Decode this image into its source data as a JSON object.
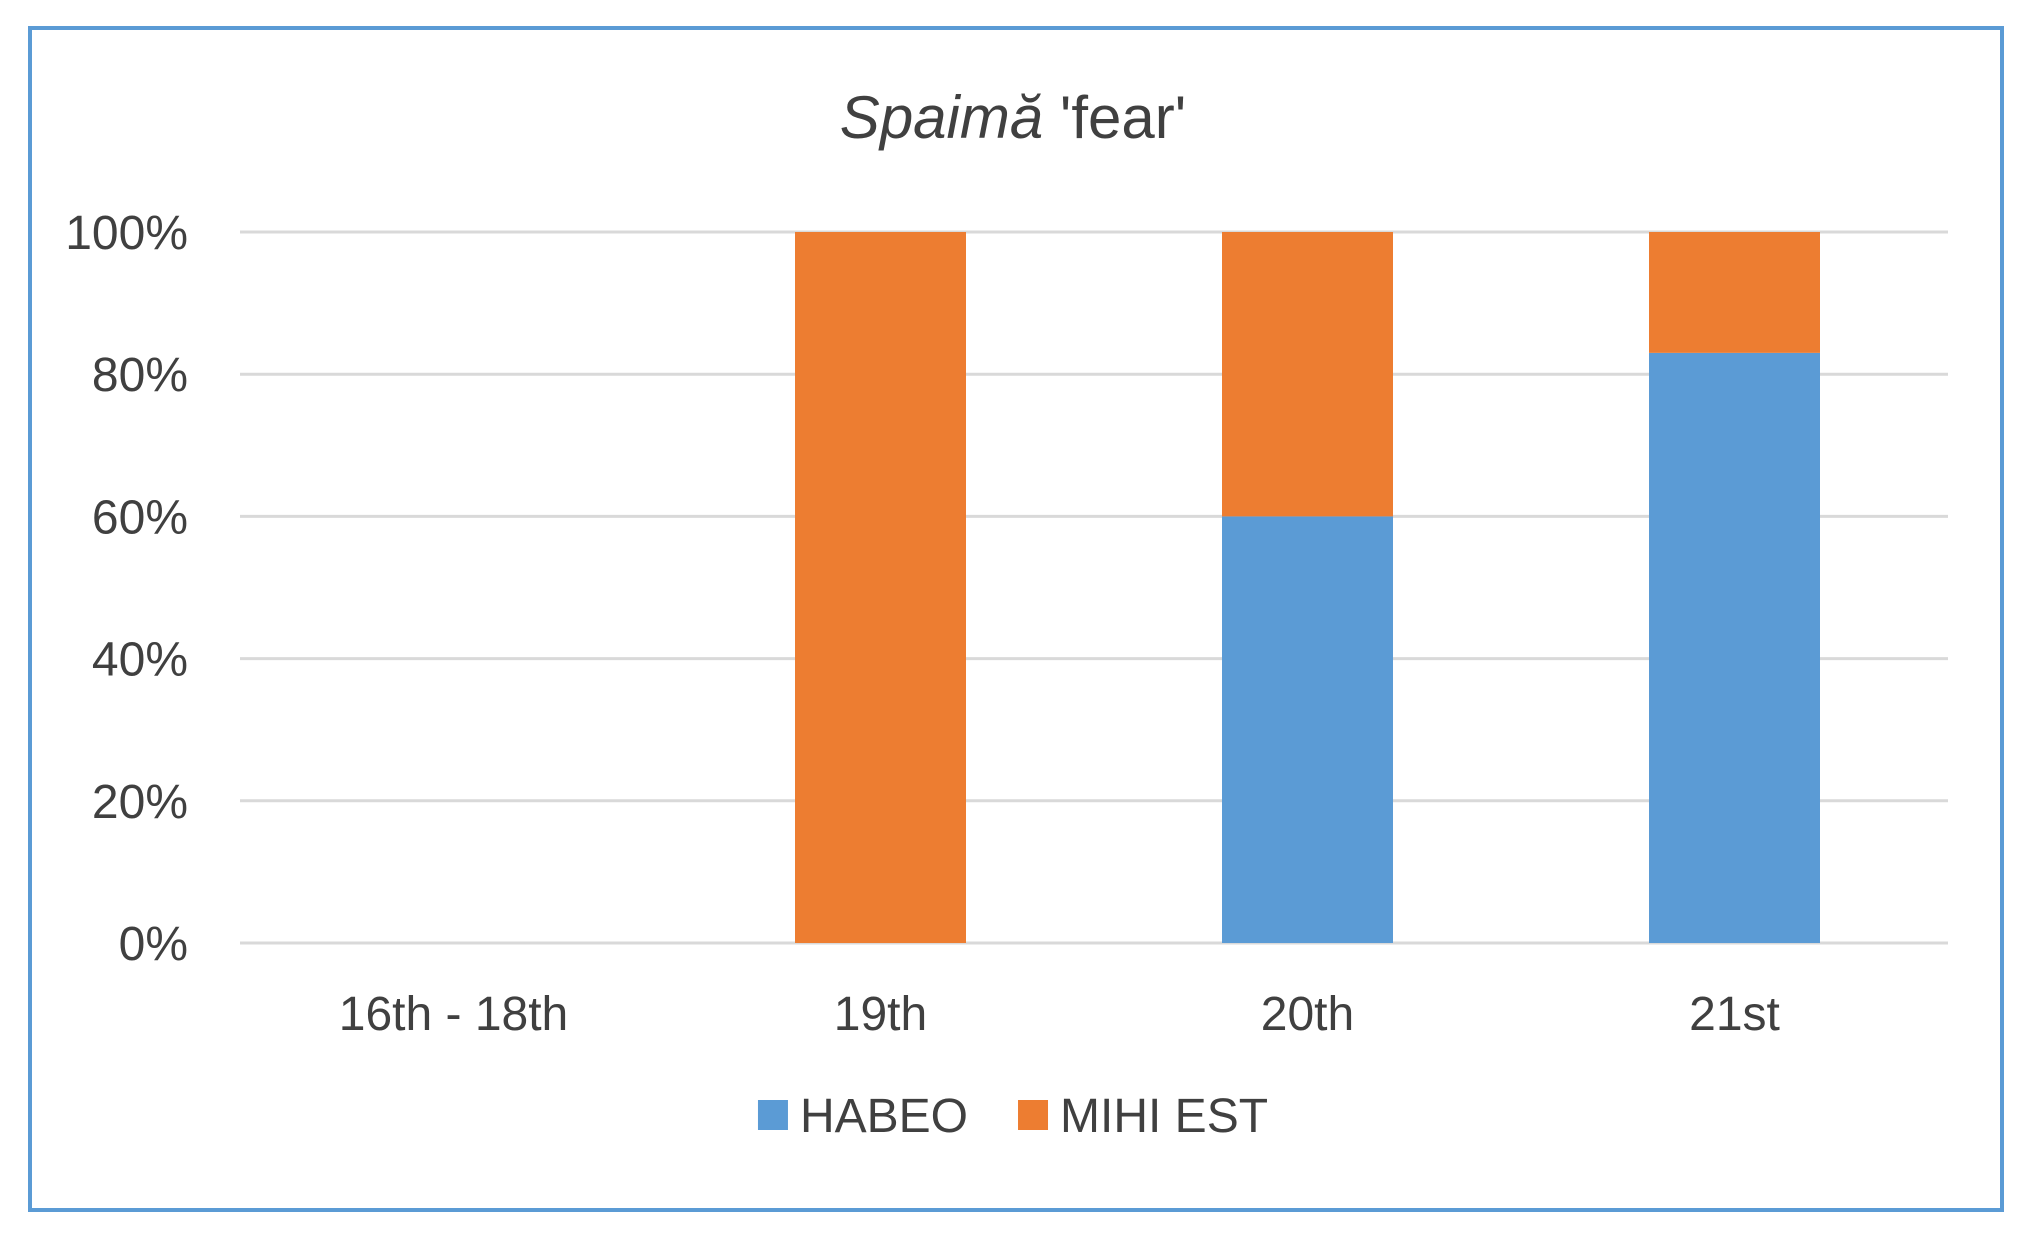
{
  "chart_data": {
    "type": "bar",
    "stacked": true,
    "title_italic": "Spaimă",
    "title_rest": " 'fear'",
    "categories": [
      "16th - 18th",
      "19th",
      "20th",
      "21st"
    ],
    "series": [
      {
        "name": "HABEO",
        "color": "#5b9bd5",
        "values": [
          0,
          0,
          60,
          83
        ]
      },
      {
        "name": "MIHI EST",
        "color": "#ed7d31",
        "values": [
          0,
          100,
          40,
          17
        ]
      }
    ],
    "ytick_labels": [
      "0%",
      "20%",
      "40%",
      "60%",
      "80%",
      "100%"
    ],
    "ylim": [
      0,
      100
    ],
    "grid": true,
    "legend_position": "bottom"
  }
}
